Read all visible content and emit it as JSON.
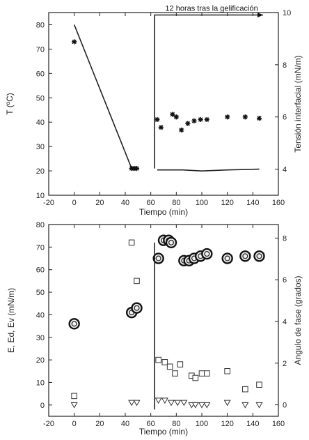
{
  "chart_data": [
    {
      "type": "line",
      "xlabel": "Tiempo (min)",
      "ylabel_left": "T (ºC)",
      "ylabel_right": "Tensión interfacial (mN/m)",
      "annotation": "12 horas tras la gelificación",
      "xlim": [
        -20,
        160
      ],
      "ylim_left": [
        10,
        85
      ],
      "ylim_right": [
        3,
        10
      ],
      "x_ticks": [
        -20,
        0,
        20,
        40,
        60,
        80,
        100,
        120,
        140,
        160
      ],
      "y_left_ticks": [
        10,
        20,
        30,
        40,
        50,
        60,
        70,
        80
      ],
      "y_right_ticks": [
        4,
        6,
        8,
        10
      ],
      "series": [
        {
          "axis": "left",
          "marker": "line",
          "x": [
            0,
            45,
            50
          ],
          "y": [
            80,
            21,
            21
          ]
        },
        {
          "axis": "left",
          "marker": "line",
          "x": [
            63,
            63,
            148
          ],
          "y": [
            21,
            84,
            84
          ]
        },
        {
          "axis": "right",
          "marker": "line",
          "x": [
            65,
            85,
            100,
            120,
            145
          ],
          "y": [
            3.97,
            3.97,
            3.93,
            3.97,
            4.0
          ]
        },
        {
          "axis": "left",
          "marker": "asterisk",
          "x": [
            0,
            45,
            47,
            49
          ],
          "y": [
            73,
            21,
            21,
            21
          ]
        },
        {
          "axis": "right",
          "marker": "asterisk",
          "x": [
            65,
            68,
            77,
            80,
            84,
            89,
            94,
            99,
            104,
            120,
            134,
            145
          ],
          "y": [
            5.9,
            5.6,
            6.1,
            6.0,
            5.5,
            5.75,
            5.85,
            5.9,
            5.9,
            6.0,
            6.0,
            5.95
          ]
        }
      ]
    },
    {
      "type": "scatter",
      "xlabel": "Tiempo (min)",
      "ylabel_left": "E, Ed, Ev (mN/m)",
      "ylabel_right": "Angulo de fase (grados)",
      "xlim": [
        -20,
        160
      ],
      "ylim_left": [
        -5,
        80
      ],
      "ylim_right": [
        -0.55,
        8.65
      ],
      "x_ticks": [
        -20,
        0,
        20,
        40,
        60,
        80,
        100,
        120,
        140,
        160
      ],
      "y_left_ticks": [
        0,
        10,
        20,
        30,
        40,
        50,
        60,
        70,
        80
      ],
      "y_right_ticks": [
        0,
        2,
        4,
        6,
        8
      ],
      "series": [
        {
          "axis": "left",
          "marker": "circle-double",
          "x": [
            0,
            45,
            49,
            66,
            70,
            74,
            76,
            86,
            90,
            94,
            99,
            104,
            120,
            134,
            145
          ],
          "y": [
            36,
            41,
            43,
            65,
            73,
            73,
            72,
            64,
            64,
            65,
            66,
            67,
            65,
            66,
            66
          ]
        },
        {
          "axis": "left",
          "marker": "square",
          "x": [
            0,
            45,
            49,
            66,
            71,
            75,
            79,
            83,
            92,
            95,
            100,
            104,
            120,
            134,
            145
          ],
          "y": [
            4,
            72,
            55,
            20,
            19,
            17,
            14,
            18,
            13,
            12,
            14,
            14,
            15,
            7,
            9
          ]
        },
        {
          "axis": "left",
          "marker": "triangle-down",
          "x": [
            0,
            45,
            49,
            66,
            71,
            76,
            81,
            86,
            92,
            95,
            100,
            104,
            120,
            134,
            145
          ],
          "y": [
            0,
            1,
            1,
            2,
            2,
            1,
            1,
            1,
            0,
            0,
            0,
            0,
            1,
            0,
            0
          ]
        },
        {
          "axis": "left",
          "marker": "line",
          "x": [
            63,
            63
          ],
          "y": [
            -2,
            72
          ]
        }
      ]
    }
  ]
}
